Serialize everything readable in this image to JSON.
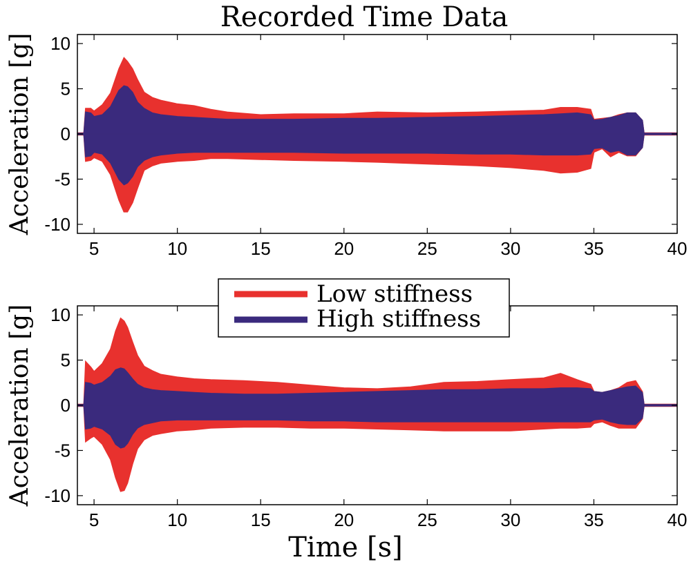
{
  "figure": {
    "title": "Recorded Time Data",
    "xlabel": "Time [s]"
  },
  "colors": {
    "low": "#e8312e",
    "high": "#3a2a7d",
    "axis": "#000000",
    "background": "#ffffff"
  },
  "legend": {
    "placement": "top-center of lower panel",
    "entries": [
      "Low stiffness",
      "High stiffness"
    ]
  },
  "chart_data": [
    {
      "type": "area",
      "panel": "top",
      "title": "Recorded Time Data",
      "xlabel": "",
      "ylabel": "Acceleration [g]",
      "xlim": [
        4,
        40
      ],
      "ylim": [
        -11,
        11
      ],
      "xticks": [
        5,
        10,
        15,
        20,
        25,
        30,
        35,
        40
      ],
      "yticks": [
        10,
        5,
        0,
        -5,
        -10
      ],
      "grid": false,
      "x": [
        4.0,
        4.4,
        4.5,
        4.8,
        5.0,
        5.5,
        6.0,
        6.5,
        6.8,
        7.0,
        7.3,
        7.6,
        8.0,
        8.5,
        9.0,
        10.0,
        11.0,
        12.0,
        13.0,
        15.0,
        17.0,
        20.0,
        22.0,
        25.0,
        28.0,
        30.0,
        32.0,
        33.0,
        34.0,
        34.8,
        35.0,
        35.5,
        36.0,
        36.5,
        37.0,
        37.5,
        37.9,
        38.0,
        40.0
      ],
      "series": [
        {
          "name": "Low stiffness",
          "upper": [
            0.1,
            0.1,
            2.8,
            2.8,
            2.5,
            3.2,
            4.5,
            7.2,
            8.4,
            8.0,
            7.2,
            6.0,
            4.6,
            4.0,
            3.7,
            3.3,
            3.1,
            2.7,
            2.4,
            2.1,
            2.2,
            2.2,
            2.4,
            2.3,
            2.4,
            2.5,
            2.6,
            2.9,
            2.9,
            2.7,
            1.6,
            1.7,
            1.8,
            2.1,
            2.3,
            2.3,
            1.5,
            0.1,
            0.1
          ],
          "lower": [
            -0.1,
            -0.1,
            -3.0,
            -2.9,
            -2.6,
            -3.0,
            -4.5,
            -7.3,
            -8.6,
            -8.6,
            -7.6,
            -6.0,
            -4.0,
            -3.5,
            -3.2,
            -3.0,
            -2.9,
            -2.7,
            -2.7,
            -2.8,
            -2.9,
            -3.0,
            -3.1,
            -3.3,
            -3.5,
            -3.7,
            -4.0,
            -4.3,
            -4.2,
            -3.8,
            -2.0,
            -1.6,
            -2.5,
            -2.0,
            -2.4,
            -2.4,
            -1.5,
            -0.1,
            -0.1
          ]
        },
        {
          "name": "High stiffness",
          "upper": [
            0.05,
            0.05,
            2.4,
            2.3,
            1.9,
            2.1,
            3.0,
            4.8,
            5.3,
            5.2,
            4.6,
            3.5,
            2.8,
            2.3,
            2.1,
            1.9,
            1.8,
            1.7,
            1.6,
            1.6,
            1.6,
            1.7,
            1.7,
            1.8,
            1.9,
            2.0,
            2.1,
            2.2,
            2.3,
            2.1,
            1.5,
            1.6,
            1.8,
            2.0,
            2.3,
            2.3,
            1.5,
            0.05,
            0.05
          ],
          "lower": [
            -0.05,
            -0.05,
            -2.5,
            -2.4,
            -2.0,
            -2.2,
            -3.2,
            -5.0,
            -5.6,
            -5.4,
            -4.7,
            -3.6,
            -2.9,
            -2.5,
            -2.3,
            -2.1,
            -2.0,
            -2.0,
            -2.0,
            -2.0,
            -2.0,
            -2.1,
            -2.1,
            -2.1,
            -2.2,
            -2.2,
            -2.3,
            -2.3,
            -2.3,
            -2.2,
            -1.6,
            -1.5,
            -2.0,
            -1.8,
            -2.3,
            -2.3,
            -1.5,
            -0.05,
            -0.05
          ]
        }
      ]
    },
    {
      "type": "area",
      "panel": "bottom",
      "title": "",
      "xlabel": "Time [s]",
      "ylabel": "Acceleration [g]",
      "xlim": [
        4,
        40
      ],
      "ylim": [
        -11,
        11
      ],
      "xticks": [
        5,
        10,
        15,
        20,
        25,
        30,
        35,
        40
      ],
      "yticks": [
        10,
        5,
        0,
        -5,
        -10
      ],
      "grid": false,
      "x": [
        4.0,
        4.4,
        4.5,
        4.8,
        5.0,
        5.5,
        6.0,
        6.3,
        6.6,
        6.8,
        7.0,
        7.3,
        7.6,
        8.0,
        8.5,
        9.0,
        10.0,
        11.0,
        12.0,
        14.0,
        16.0,
        18.0,
        20.0,
        22.0,
        24.0,
        26.0,
        28.0,
        30.0,
        32.0,
        33.0,
        34.0,
        34.8,
        35.0,
        35.5,
        36.0,
        36.5,
        37.0,
        37.5,
        37.9,
        38.0,
        40.0
      ],
      "series": [
        {
          "name": "Low stiffness",
          "upper": [
            0.1,
            0.1,
            4.8,
            4.2,
            3.7,
            4.6,
            6.2,
            8.2,
            9.6,
            9.3,
            8.6,
            7.0,
            5.5,
            4.3,
            3.8,
            3.4,
            3.1,
            2.9,
            2.8,
            2.7,
            2.5,
            2.2,
            1.9,
            1.8,
            2.0,
            2.5,
            2.6,
            2.8,
            3.0,
            3.5,
            2.8,
            2.3,
            1.5,
            1.4,
            1.6,
            1.9,
            2.5,
            2.7,
            1.5,
            0.1,
            0.1
          ],
          "lower": [
            -0.1,
            -0.1,
            -4.0,
            -3.6,
            -3.4,
            -4.3,
            -6.0,
            -8.0,
            -9.5,
            -9.4,
            -8.6,
            -6.5,
            -4.8,
            -3.8,
            -3.3,
            -3.1,
            -2.8,
            -2.7,
            -2.5,
            -2.4,
            -2.4,
            -2.5,
            -2.5,
            -2.6,
            -2.7,
            -2.8,
            -2.8,
            -2.8,
            -2.6,
            -2.5,
            -2.5,
            -2.4,
            -2.0,
            -1.8,
            -2.2,
            -2.5,
            -2.5,
            -2.5,
            -1.5,
            -0.1,
            -0.1
          ]
        },
        {
          "name": "High stiffness",
          "upper": [
            0.05,
            0.05,
            2.5,
            2.4,
            2.2,
            2.5,
            3.2,
            3.9,
            4.1,
            4.0,
            3.6,
            2.9,
            2.3,
            1.9,
            1.7,
            1.6,
            1.5,
            1.4,
            1.3,
            1.2,
            1.2,
            1.3,
            1.4,
            1.5,
            1.6,
            1.7,
            1.7,
            1.8,
            1.8,
            1.9,
            1.9,
            1.8,
            1.5,
            1.4,
            1.6,
            1.8,
            2.0,
            2.1,
            1.4,
            0.05,
            0.05
          ],
          "lower": [
            -0.05,
            -0.05,
            -2.6,
            -2.5,
            -2.3,
            -2.6,
            -3.3,
            -4.3,
            -4.7,
            -4.6,
            -4.2,
            -3.2,
            -2.5,
            -2.1,
            -1.9,
            -1.7,
            -1.6,
            -1.6,
            -1.6,
            -1.6,
            -1.6,
            -1.7,
            -1.7,
            -1.8,
            -1.8,
            -1.8,
            -1.8,
            -1.8,
            -1.8,
            -1.8,
            -1.8,
            -1.8,
            -1.6,
            -1.5,
            -1.8,
            -2.0,
            -2.1,
            -2.1,
            -1.4,
            -0.05,
            -0.05
          ]
        }
      ]
    }
  ]
}
